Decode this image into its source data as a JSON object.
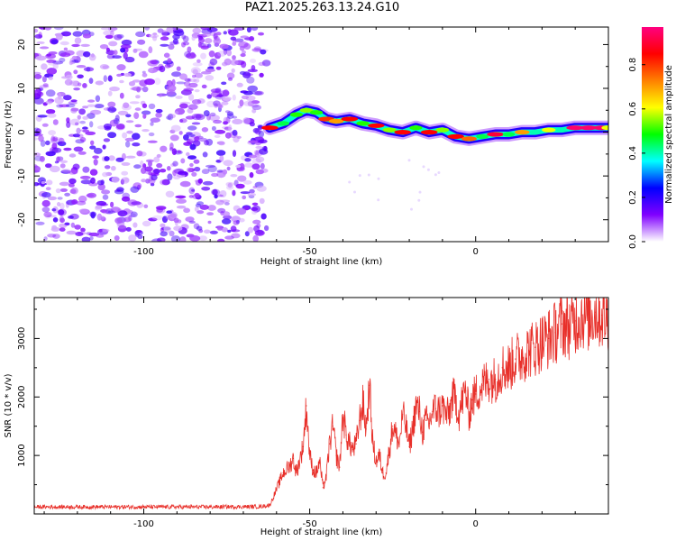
{
  "figure": {
    "title": "PAZ1.2025.263.13.24.G10"
  },
  "chart_data": [
    {
      "type": "heatmap",
      "title": "PAZ1.2025.263.13.24.G10",
      "xlabel": "Height of straight line (km)",
      "ylabel": "Frequency (Hz)",
      "xlim": [
        -133,
        40
      ],
      "ylim": [
        -25,
        24
      ],
      "xticks": [
        -100,
        -50,
        0
      ],
      "yticks": [
        -20,
        -10,
        0,
        10,
        20
      ],
      "xtick_labels": [
        "-100",
        "-50",
        "0"
      ],
      "ytick_labels": [
        "-20",
        "-10",
        "0",
        "10",
        "20"
      ],
      "colorbar": {
        "label": "Normalized spectral amplitude",
        "range": [
          0,
          0.97
        ],
        "ticks": [
          0,
          0.2,
          0.4,
          0.6,
          0.8
        ],
        "tick_labels": [
          "0.0",
          "0.2",
          "0.4",
          "0.6",
          "0.8"
        ],
        "colors": [
          "#ffffff",
          "#8000ff",
          "#0000ff",
          "#00ffff",
          "#00ff00",
          "#ffff00",
          "#ff8000",
          "#ff0000",
          "#ff0080"
        ]
      },
      "noise_region": {
        "x_range": [
          -133,
          -63
        ],
        "amplitude_range": [
          0.02,
          0.12
        ]
      },
      "ridge": {
        "x": [
          -62,
          -58,
          -54,
          -51,
          -48,
          -45,
          -42,
          -38,
          -34,
          -30,
          -26,
          -22,
          -18,
          -14,
          -10,
          -6,
          -2,
          2,
          6,
          10,
          14,
          18,
          22,
          26,
          30,
          34,
          38,
          40
        ],
        "freq_hz": [
          1,
          2,
          4,
          5,
          4.5,
          3,
          2.5,
          3,
          2,
          1.5,
          0.5,
          0,
          1,
          0,
          0.5,
          -1,
          -1.5,
          -1,
          -0.5,
          -0.5,
          0,
          0,
          0.5,
          0.5,
          1,
          1,
          1,
          1
        ],
        "amplitude": [
          0.85,
          0.45,
          0.5,
          0.55,
          0.5,
          0.8,
          0.7,
          0.85,
          0.5,
          0.85,
          0.55,
          0.85,
          0.5,
          0.85,
          0.55,
          0.85,
          0.75,
          0.45,
          0.9,
          0.45,
          0.7,
          0.4,
          0.6,
          0.4,
          0.95,
          0.95,
          0.95,
          0.6
        ]
      }
    },
    {
      "type": "line",
      "xlabel": "Height of straight line (km)",
      "ylabel": "SNR (10 * v/v)",
      "xlim": [
        -133,
        40
      ],
      "ylim": [
        0,
        3700
      ],
      "xticks": [
        -100,
        -50,
        0
      ],
      "yticks": [
        1000,
        2000,
        3000
      ],
      "xtick_labels": [
        "-100",
        "-50",
        "0"
      ],
      "ytick_labels": [
        "1000",
        "2000",
        "3000"
      ],
      "series": [
        {
          "name": "SNR",
          "color": "#e8302a",
          "x": [
            -133,
            -120,
            -100,
            -80,
            -65,
            -62,
            -60,
            -58,
            -56,
            -55,
            -54,
            -52,
            -51,
            -50,
            -49,
            -48,
            -47,
            -46,
            -45,
            -44,
            -43,
            -42,
            -41,
            -40,
            -39,
            -38,
            -37,
            -36,
            -35,
            -34,
            -33,
            -32,
            -31,
            -30,
            -29,
            -28,
            -27,
            -26,
            -25,
            -24,
            -23,
            -22,
            -21,
            -20,
            -19,
            -18,
            -17,
            -16,
            -15,
            -14,
            -13,
            -12,
            -11,
            -10,
            -9,
            -8,
            -7,
            -6,
            -5,
            -4,
            -3,
            -2,
            -1,
            0,
            2,
            4,
            6,
            8,
            10,
            12,
            14,
            16,
            18,
            20,
            22,
            24,
            26,
            28,
            30,
            32,
            34,
            36,
            38,
            40
          ],
          "values": [
            120,
            120,
            120,
            120,
            125,
            150,
            420,
            700,
            820,
            950,
            700,
            1150,
            1850,
            1000,
            750,
            700,
            900,
            450,
            650,
            1200,
            1500,
            1000,
            800,
            1700,
            1350,
            1200,
            1100,
            1200,
            1600,
            1900,
            1450,
            2200,
            1200,
            900,
            1000,
            700,
            700,
            1100,
            1500,
            1350,
            1200,
            1700,
            1500,
            1150,
            1450,
            1850,
            1750,
            1400,
            1600,
            1550,
            1750,
            1800,
            1750,
            1850,
            1700,
            1700,
            2000,
            1950,
            1700,
            1950,
            2100,
            1700,
            1950,
            2050,
            2200,
            2300,
            2300,
            2500,
            2500,
            2650,
            2700,
            2800,
            2850,
            2950,
            3000,
            3100,
            3250,
            3200,
            3300,
            3400,
            3350,
            3450,
            3400,
            3350
          ]
        }
      ]
    }
  ]
}
